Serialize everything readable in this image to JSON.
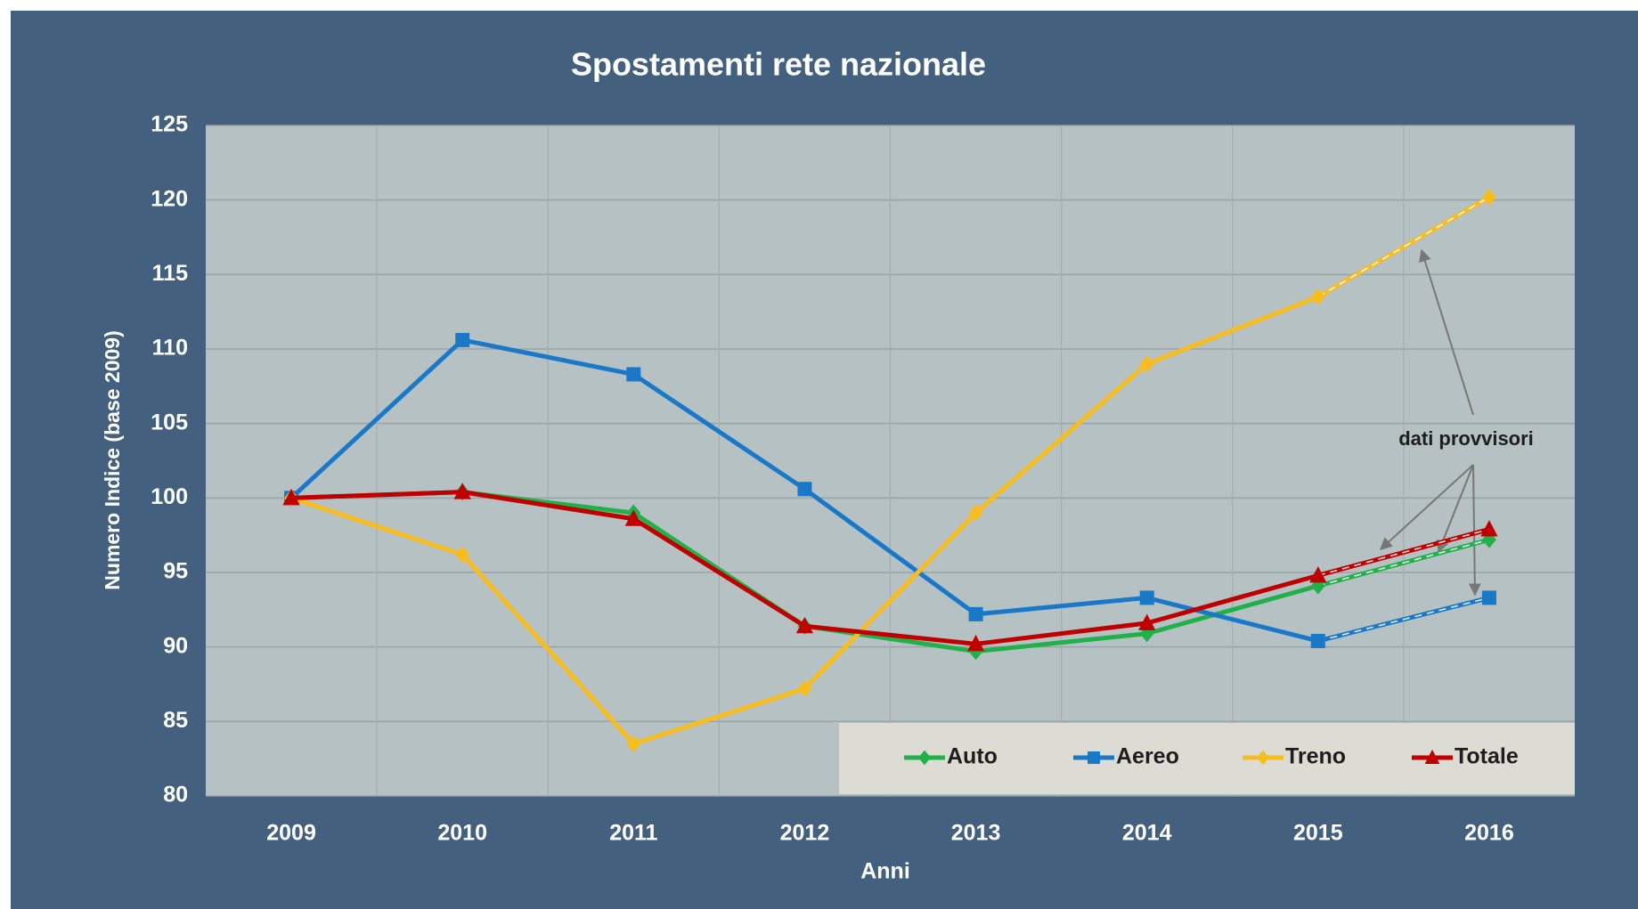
{
  "chart_data": {
    "type": "line",
    "title": "Spostamenti rete nazionale",
    "x_label": "Anni",
    "y_label": "Numero Indice (base 2009)",
    "annotation": "dati provvisori",
    "categories": [
      "2009",
      "2010",
      "2011",
      "2012",
      "2013",
      "2014",
      "2015",
      "2016"
    ],
    "series": [
      {
        "name": "Auto",
        "color": "#22b04a",
        "marker": "diamond",
        "values": [
          100,
          100.4,
          99.0,
          91.4,
          89.7,
          90.9,
          94.1,
          97.2
        ]
      },
      {
        "name": "Aereo",
        "color": "#1a78c8",
        "marker": "square",
        "values": [
          100,
          110.6,
          108.3,
          100.6,
          92.2,
          93.3,
          90.4,
          93.3
        ]
      },
      {
        "name": "Treno",
        "color": "#f7bc1e",
        "marker": "diamond",
        "values": [
          100,
          96.2,
          83.5,
          87.2,
          99.0,
          109.0,
          113.5,
          120.2
        ]
      },
      {
        "name": "Totale",
        "color": "#c00000",
        "marker": "triangle",
        "values": [
          100,
          100.4,
          98.6,
          91.4,
          90.2,
          91.6,
          94.8,
          97.9
        ]
      }
    ],
    "ylim": [
      80,
      125
    ],
    "yticks": [
      80,
      85,
      90,
      95,
      100,
      105,
      110,
      115,
      120,
      125
    ],
    "grid": true,
    "legend": "bottom-right"
  }
}
